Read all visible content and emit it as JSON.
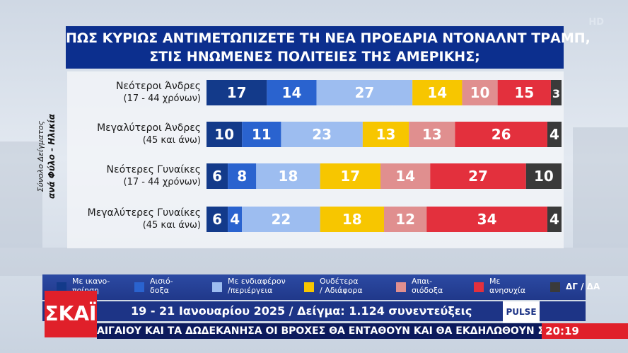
{
  "watermark": "HD",
  "title_line1": "ΠΩΣ ΚΥΡΙΩΣ ΑΝΤΙΜΕΤΩΠΙΖΕΤΕ ΤΗ ΝΕΑ ΠΡΟΕΔΡΙΑ ΝΤΟΝΑΛΝΤ ΤΡΑΜΠ,",
  "title_line2": "ΣΤΙΣ ΗΝΩΜΕΝΕΣ ΠΟΛΙΤΕΙΕΣ ΤΗΣ ΑΜΕΡΙΚΗΣ;",
  "side_label": {
    "line1": "Σύνολο Δείγματος",
    "line2": "ανά Φύλο - Ηλικία"
  },
  "chart_data": {
    "type": "bar",
    "stacked": true,
    "orientation": "horizontal",
    "categories": [
      {
        "name": "Νεότεροι Άνδρες",
        "sub": "(17 - 44 χρόνων)"
      },
      {
        "name": "Μεγαλύτεροι Άνδρες",
        "sub": "(45 και άνω)"
      },
      {
        "name": "Νεότερες Γυναίκες",
        "sub": "(17 - 44 χρόνων)"
      },
      {
        "name": "Μεγαλύτερες Γυναίκες",
        "sub": "(45 και άνω)"
      }
    ],
    "series": [
      {
        "name": "Με ικανοποίηση",
        "color": "#133a8a",
        "values": [
          17,
          10,
          6,
          6
        ]
      },
      {
        "name": "Αισιόδοξα",
        "color": "#2a63cf",
        "values": [
          14,
          11,
          8,
          4
        ]
      },
      {
        "name": "Με ενδιαφέρον /περιέργεια",
        "color": "#9dbdf0",
        "values": [
          27,
          23,
          18,
          22
        ]
      },
      {
        "name": "Ουδέτερα / Αδιάφορα",
        "color": "#f7c600",
        "values": [
          14,
          13,
          17,
          18
        ]
      },
      {
        "name": "Απαισιόδοξα",
        "color": "#e08f8f",
        "values": [
          10,
          13,
          14,
          12
        ]
      },
      {
        "name": "Με ανησυχία",
        "color": "#e3303d",
        "values": [
          15,
          26,
          27,
          34
        ]
      },
      {
        "name": "ΔΓ / ΔΑ",
        "color": "#3a3a3a",
        "values": [
          3,
          4,
          10,
          4
        ]
      }
    ]
  },
  "legend": [
    {
      "line1": "Με ικανο-",
      "line2": "ποίηση"
    },
    {
      "line1": "Αισιό-",
      "line2": "δοξα"
    },
    {
      "line1": "Με ενδιαφέρον",
      "line2": "/περιέργεια"
    },
    {
      "line1": "Ουδέτερα",
      "line2": "/ Αδιάφορα"
    },
    {
      "line1": "Απαι-",
      "line2": "σιόδοξα"
    },
    {
      "line1": "Με",
      "line2": "ανησυχία"
    },
    {
      "line1": "ΔΓ / ΔΑ",
      "line2": ""
    }
  ],
  "footer": "19 - 21 Ιανουαρίου 2025 / Δείγμα: 1.124 συνεντεύξεις",
  "pulse_logo": "PULSE",
  "channel_logo": "ΣΚΑΪ",
  "ticker": "ΑΙΓΑΙΟΥ ΚΑΙ ΤΑ ΔΩΔΕΚΑΝΗΣΑ ΟΙ ΒΡΟΧΕΣ ΘΑ ΕΝΤΑΘΟΥΝ ΚΑΙ ΘΑ  ΕΚΔΗΛΩΘΟΥΝ ΣΠΟΡΑΔΙΚΕΣ Κ",
  "clock": "20:19"
}
